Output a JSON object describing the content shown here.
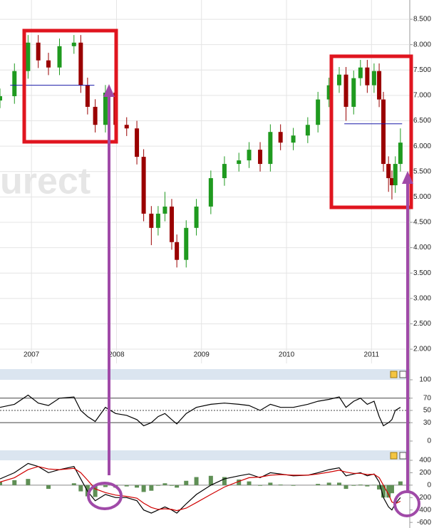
{
  "chart_data": [
    {
      "type": "candlestick",
      "watermark": "urect",
      "x": [
        2006.63,
        2006.8,
        2006.96,
        2007.08,
        2007.2,
        2007.33,
        2007.5,
        2007.58,
        2007.66,
        2007.75,
        2007.87,
        2007.99,
        2008.12,
        2008.24,
        2008.32,
        2008.41,
        2008.49,
        2008.57,
        2008.65,
        2008.71,
        2008.82,
        2008.94,
        2009.11,
        2009.27,
        2009.44,
        2009.56,
        2009.69,
        2009.81,
        2009.93,
        2010.08,
        2010.25,
        2010.37,
        2010.5,
        2010.62,
        2010.7,
        2010.79,
        2010.87,
        2010.95,
        2011.03,
        2011.09,
        2011.14,
        2011.2,
        2011.24,
        2011.28,
        2011.34
      ],
      "open": [
        6900,
        6985,
        7480,
        8040,
        7690,
        7550,
        7970,
        8040,
        7200,
        6775,
        6420,
        7055,
        6420,
        6350,
        5790,
        4670,
        4390,
        4670,
        4810,
        4110,
        3760,
        4390,
        4810,
        5370,
        5650,
        5720,
        5930,
        5650,
        6280,
        6070,
        6210,
        6420,
        6920,
        7200,
        7410,
        6775,
        7340,
        7550,
        7200,
        7480,
        6920,
        5650,
        5370,
        5230,
        5650
      ],
      "high": [
        7135,
        7630,
        8190,
        8190,
        7840,
        8120,
        8190,
        8190,
        7350,
        6925,
        7205,
        7205,
        6570,
        6500,
        5940,
        4820,
        4820,
        5100,
        4960,
        4260,
        4540,
        4960,
        5520,
        5800,
        5870,
        6080,
        6080,
        6430,
        6430,
        6360,
        6570,
        7070,
        7350,
        7560,
        7560,
        7490,
        7700,
        7700,
        7630,
        7630,
        7070,
        5800,
        5520,
        5800,
        6350
      ],
      "low": [
        6750,
        6835,
        7330,
        7540,
        7400,
        7400,
        7820,
        7050,
        6625,
        6270,
        6270,
        6270,
        6200,
        5640,
        4520,
        4050,
        4240,
        4520,
        3960,
        3610,
        3610,
        4240,
        4660,
        5220,
        5500,
        5570,
        5500,
        5500,
        5920,
        5920,
        6060,
        6270,
        6770,
        7050,
        6500,
        6625,
        7190,
        7050,
        7050,
        6770,
        5500,
        5100,
        4950,
        5080,
        5500
      ],
      "close": [
        6985,
        7480,
        8040,
        7690,
        7550,
        7970,
        8040,
        7200,
        6775,
        6420,
        7055,
        6420,
        6350,
        5790,
        4670,
        4390,
        4670,
        4810,
        4110,
        3760,
        4390,
        4810,
        5370,
        5650,
        5720,
        5930,
        5650,
        6280,
        6070,
        6210,
        6420,
        6920,
        7200,
        7410,
        6775,
        7340,
        7550,
        7200,
        7480,
        6920,
        5650,
        5370,
        5230,
        5650,
        6070
      ],
      "up_color": "#1f9a1f",
      "down_color": "#9a0000",
      "reference_lines": [
        {
          "y": 7200,
          "x": [
            2006.75,
            2007.74
          ]
        },
        {
          "y": 6440,
          "x": [
            2010.68,
            2011.36
          ]
        }
      ],
      "reference_color": "#1a1aa8",
      "xlim": [
        2006.63,
        2011.45
      ],
      "xticks": [
        2007,
        2008,
        2009,
        2010,
        2011
      ],
      "ylim": [
        1720,
        8880
      ],
      "yticks": [
        {
          "value": 8500,
          "label": "8.500"
        },
        {
          "value": 8000,
          "label": "8.000"
        },
        {
          "value": 7500,
          "label": "7.500"
        },
        {
          "value": 7000,
          "label": "7.000"
        },
        {
          "value": 6500,
          "label": "6.500"
        },
        {
          "value": 6000,
          "label": "6.000"
        },
        {
          "value": 5500,
          "label": "5.500"
        },
        {
          "value": 5000,
          "label": "5.000"
        },
        {
          "value": 4500,
          "label": "4.500"
        },
        {
          "value": 4000,
          "label": "4.000"
        },
        {
          "value": 3500,
          "label": "3.500"
        },
        {
          "value": 3000,
          "label": "3.000"
        },
        {
          "value": 2500,
          "label": "2.500"
        },
        {
          "value": 2000,
          "label": "2.000"
        }
      ],
      "grid": true
    },
    {
      "type": "line",
      "x": [
        2006.63,
        2006.8,
        2006.96,
        2007.08,
        2007.2,
        2007.33,
        2007.5,
        2007.58,
        2007.66,
        2007.75,
        2007.87,
        2007.99,
        2008.12,
        2008.24,
        2008.32,
        2008.41,
        2008.49,
        2008.57,
        2008.65,
        2008.71,
        2008.82,
        2008.94,
        2009.11,
        2009.27,
        2009.44,
        2009.56,
        2009.69,
        2009.81,
        2009.93,
        2010.08,
        2010.25,
        2010.37,
        2010.5,
        2010.62,
        2010.7,
        2010.79,
        2010.87,
        2010.95,
        2011.03,
        2011.09,
        2011.14,
        2011.2,
        2011.24,
        2011.28,
        2011.34
      ],
      "series": [
        {
          "color": "#000000",
          "values": [
            55,
            60,
            75,
            62,
            58,
            70,
            72,
            50,
            40,
            32,
            55,
            45,
            42,
            35,
            25,
            30,
            40,
            45,
            35,
            28,
            45,
            55,
            60,
            62,
            60,
            58,
            50,
            60,
            55,
            55,
            60,
            65,
            68,
            72,
            55,
            65,
            70,
            60,
            65,
            40,
            25,
            30,
            35,
            50,
            55
          ]
        }
      ],
      "levels": [
        70,
        30
      ],
      "midline": 50,
      "xlim": [
        2006.63,
        2011.45
      ],
      "ylim": [
        -7,
        100
      ],
      "yticks": [
        100,
        70,
        50,
        30,
        0
      ]
    },
    {
      "type": "line",
      "x": [
        2006.63,
        2006.8,
        2006.96,
        2007.08,
        2007.2,
        2007.33,
        2007.5,
        2007.58,
        2007.66,
        2007.75,
        2007.87,
        2007.99,
        2008.12,
        2008.24,
        2008.32,
        2008.41,
        2008.49,
        2008.57,
        2008.65,
        2008.71,
        2008.82,
        2008.94,
        2009.11,
        2009.27,
        2009.44,
        2009.56,
        2009.69,
        2009.81,
        2009.93,
        2010.08,
        2010.25,
        2010.37,
        2010.5,
        2010.62,
        2010.7,
        2010.79,
        2010.87,
        2010.95,
        2011.03,
        2011.09,
        2011.14,
        2011.2,
        2011.24,
        2011.28,
        2011.34
      ],
      "series": [
        {
          "color": "#000000",
          "values": [
            100,
            200,
            350,
            300,
            200,
            250,
            300,
            100,
            -100,
            -250,
            -150,
            -200,
            -200,
            -250,
            -400,
            -450,
            -400,
            -350,
            -400,
            -450,
            -300,
            -150,
            0,
            100,
            150,
            180,
            120,
            200,
            180,
            150,
            160,
            200,
            250,
            280,
            150,
            180,
            200,
            150,
            180,
            50,
            -200,
            -350,
            -400,
            -300,
            -200
          ]
        },
        {
          "color": "#d00000",
          "values": [
            50,
            120,
            250,
            300,
            260,
            250,
            270,
            200,
            80,
            -60,
            -120,
            -160,
            -180,
            -210,
            -290,
            -360,
            -390,
            -380,
            -390,
            -410,
            -370,
            -280,
            -150,
            -30,
            60,
            120,
            130,
            160,
            170,
            160,
            160,
            180,
            210,
            240,
            210,
            190,
            190,
            170,
            175,
            120,
            0,
            -150,
            -270,
            -300,
            -260
          ]
        }
      ],
      "histogram": {
        "color": "#5f8f55",
        "values": [
          50,
          80,
          100,
          0,
          -60,
          0,
          30,
          -100,
          -180,
          -190,
          -30,
          -40,
          -20,
          -40,
          -110,
          -90,
          -10,
          30,
          -10,
          -40,
          70,
          130,
          150,
          130,
          90,
          60,
          -10,
          40,
          10,
          -10,
          0,
          20,
          40,
          40,
          -60,
          -10,
          10,
          -20,
          5,
          -70,
          -200,
          -200,
          -130,
          0,
          60
        ]
      },
      "zero": 0,
      "xlim": [
        2006.63,
        2011.45
      ],
      "ylim": [
        -690,
        400
      ],
      "yticks": [
        400,
        200,
        0,
        -200,
        -400,
        -600
      ]
    }
  ]
}
